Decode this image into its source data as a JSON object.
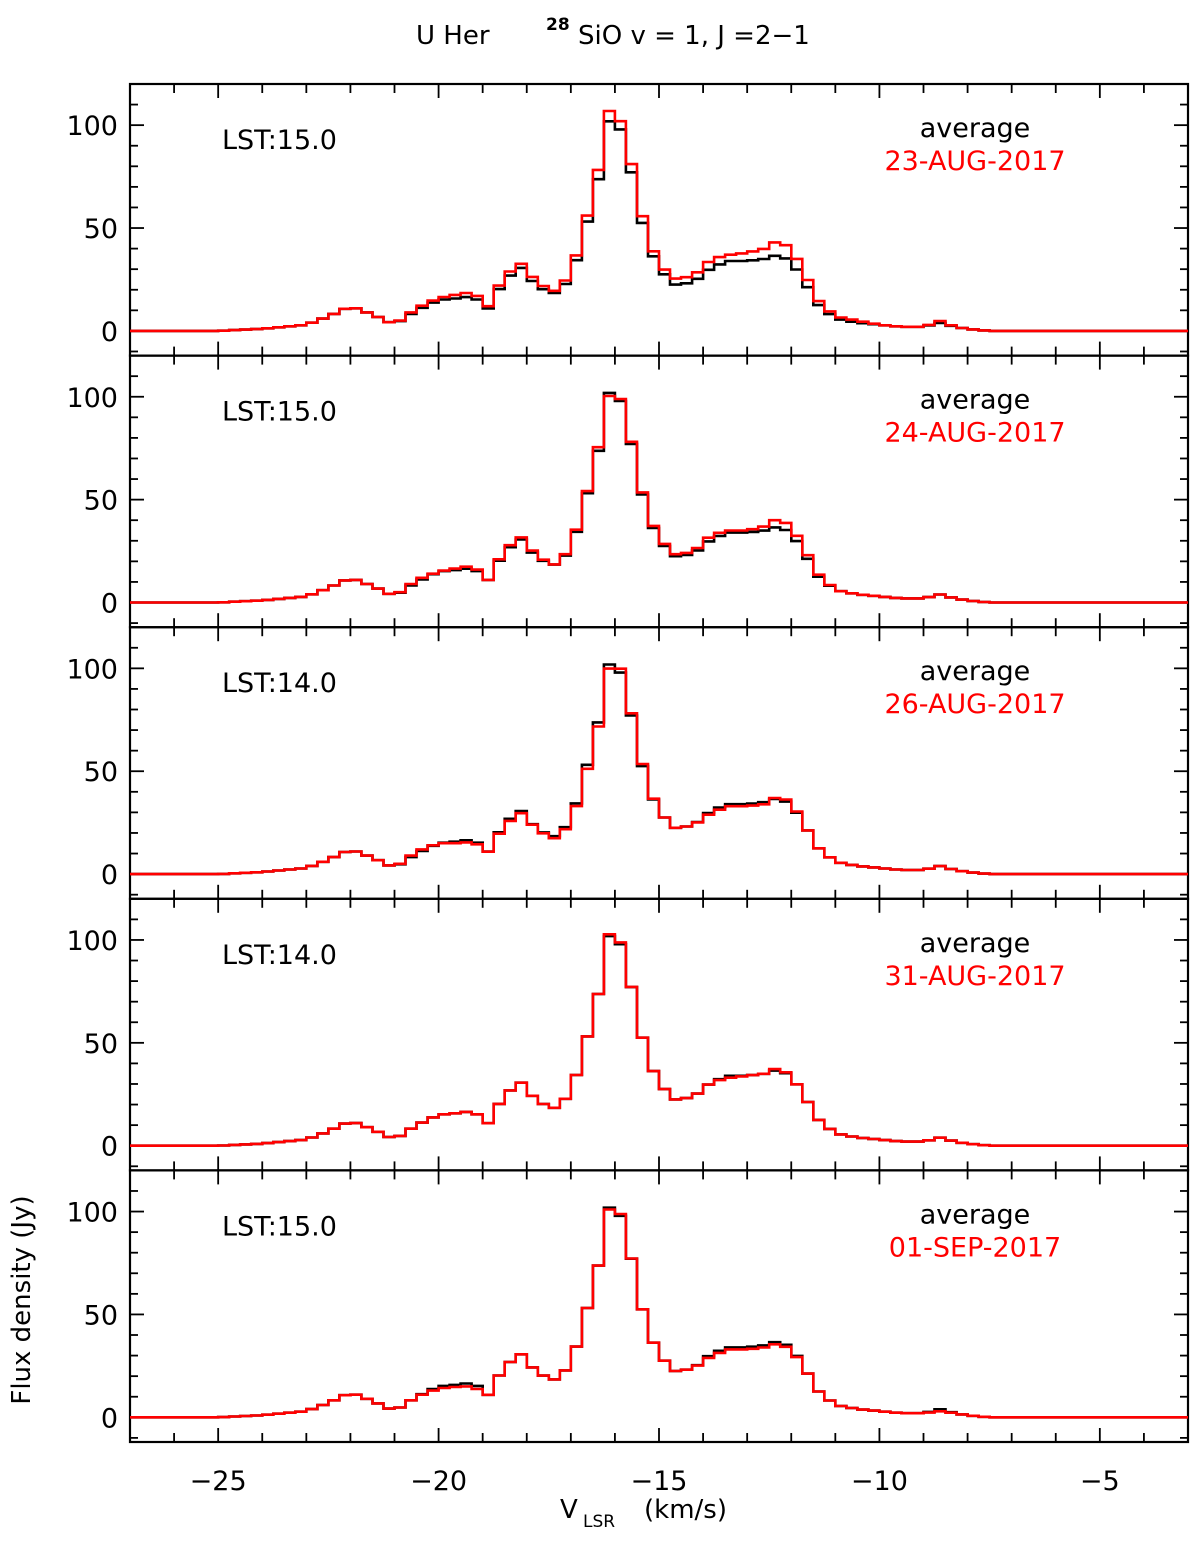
{
  "title": {
    "prefix": "U Her",
    "isotope": "28",
    "molecule": "SiO v = 1, J =2−1"
  },
  "xaxis": {
    "label_main": "V",
    "label_sub": "LSR",
    "label_unit": "(km/s)",
    "range": [
      -27,
      -3
    ],
    "tick_labels": [
      "−25",
      "−20",
      "−15",
      "−10",
      "−5"
    ]
  },
  "yaxis": {
    "label": "Flux density (Jy)",
    "range": [
      -12,
      120
    ],
    "tick_labels": [
      "0",
      "50",
      "100"
    ]
  },
  "colors": {
    "average": "#000000",
    "daily": "#ff0000"
  },
  "chart_data": [
    {
      "type": "line",
      "lst": "LST:15.0",
      "avg_label": "average",
      "date": "23-AUG-2017",
      "x": [
        -27,
        -25,
        -24,
        -23,
        -22.5,
        -22,
        -21.5,
        -21,
        -20.5,
        -20,
        -19.5,
        -19.2,
        -18.9,
        -18.5,
        -18.1,
        -17.8,
        -17.4,
        -17,
        -16.6,
        -16.3,
        -16.1,
        -15.9,
        -15.6,
        -15.3,
        -15,
        -14.6,
        -14.2,
        -13.8,
        -13.4,
        -13,
        -12.6,
        -12.3,
        -12,
        -11.7,
        -11.4,
        -11,
        -10.5,
        -10,
        -9.5,
        -9,
        -8.6,
        -8.3,
        -8,
        -7.5,
        -7,
        -5,
        -3
      ],
      "series": [
        {
          "name": "average",
          "values": [
            0,
            0,
            1,
            3,
            7,
            12,
            8,
            3,
            10,
            15,
            16,
            17,
            10,
            25,
            31,
            22,
            18,
            25,
            55,
            80,
            105,
            100,
            75,
            45,
            30,
            22,
            24,
            31,
            34,
            34,
            35,
            37,
            34,
            24,
            13,
            6,
            4,
            3,
            2,
            2,
            4,
            2,
            1,
            0,
            0,
            0,
            0
          ]
        },
        {
          "name": "daily",
          "values": [
            0,
            0,
            1,
            3,
            7,
            12,
            8,
            3,
            11,
            16,
            18,
            19,
            11,
            27,
            33,
            24,
            19,
            27,
            58,
            85,
            110,
            104,
            79,
            48,
            32,
            25,
            27,
            35,
            37,
            38,
            40,
            44,
            40,
            28,
            15,
            7,
            5,
            3,
            2,
            2,
            5,
            2,
            1,
            0,
            0,
            0,
            0
          ]
        }
      ]
    },
    {
      "type": "line",
      "lst": "LST:15.0",
      "avg_label": "average",
      "date": "24-AUG-2017",
      "x": [
        -27,
        -25,
        -24,
        -23,
        -22.5,
        -22,
        -21.5,
        -21,
        -20.5,
        -20,
        -19.5,
        -19.2,
        -18.9,
        -18.5,
        -18.1,
        -17.8,
        -17.4,
        -17,
        -16.6,
        -16.3,
        -16.1,
        -15.9,
        -15.6,
        -15.3,
        -15,
        -14.6,
        -14.2,
        -13.8,
        -13.4,
        -13,
        -12.6,
        -12.3,
        -12,
        -11.7,
        -11.4,
        -11,
        -10.5,
        -10,
        -9.5,
        -9,
        -8.6,
        -8.3,
        -8,
        -7.5,
        -7,
        -5,
        -3
      ],
      "series": [
        {
          "name": "average",
          "values": [
            0,
            0,
            1,
            3,
            7,
            12,
            8,
            3,
            10,
            15,
            16,
            17,
            10,
            25,
            31,
            22,
            18,
            25,
            55,
            80,
            105,
            100,
            75,
            45,
            30,
            22,
            24,
            31,
            34,
            34,
            35,
            37,
            34,
            24,
            13,
            6,
            4,
            3,
            2,
            2,
            4,
            2,
            1,
            0,
            0,
            0,
            0
          ]
        },
        {
          "name": "daily",
          "values": [
            0,
            0,
            1,
            3,
            7,
            12,
            8,
            3,
            11,
            15,
            17,
            18,
            10,
            26,
            32,
            23,
            18,
            26,
            56,
            82,
            103,
            101,
            76,
            46,
            31,
            23,
            25,
            33,
            35,
            35,
            37,
            41,
            37,
            26,
            14,
            6,
            4,
            3,
            2,
            2,
            4,
            2,
            1,
            0,
            0,
            0,
            0
          ]
        }
      ]
    },
    {
      "type": "line",
      "lst": "LST:14.0",
      "avg_label": "average",
      "date": "26-AUG-2017",
      "x": [
        -27,
        -25,
        -24,
        -23,
        -22.5,
        -22,
        -21.5,
        -21,
        -20.5,
        -20,
        -19.5,
        -19.2,
        -18.9,
        -18.5,
        -18.1,
        -17.8,
        -17.4,
        -17,
        -16.6,
        -16.3,
        -16.1,
        -15.9,
        -15.6,
        -15.3,
        -15,
        -14.6,
        -14.2,
        -13.8,
        -13.4,
        -13,
        -12.6,
        -12.3,
        -12,
        -11.7,
        -11.4,
        -11,
        -10.5,
        -10,
        -9.5,
        -9,
        -8.6,
        -8.3,
        -8,
        -7.5,
        -7,
        -5,
        -3
      ],
      "series": [
        {
          "name": "average",
          "values": [
            0,
            0,
            1,
            3,
            7,
            12,
            8,
            3,
            10,
            15,
            16,
            17,
            10,
            25,
            31,
            22,
            18,
            25,
            55,
            80,
            105,
            100,
            75,
            45,
            30,
            22,
            24,
            31,
            34,
            34,
            35,
            37,
            34,
            24,
            13,
            6,
            4,
            3,
            2,
            2,
            4,
            2,
            1,
            0,
            0,
            0,
            0
          ]
        },
        {
          "name": "daily",
          "values": [
            0,
            0,
            1,
            3,
            7,
            12,
            8,
            3,
            11,
            15,
            15,
            16,
            10,
            24,
            30,
            22,
            17,
            24,
            53,
            78,
            103,
            102,
            76,
            46,
            30,
            22,
            24,
            30,
            33,
            33,
            34,
            38,
            35,
            24,
            13,
            6,
            4,
            3,
            2,
            2,
            4,
            2,
            1,
            0,
            0,
            0,
            0
          ]
        }
      ]
    },
    {
      "type": "line",
      "lst": "LST:14.0",
      "avg_label": "average",
      "date": "31-AUG-2017",
      "x": [
        -27,
        -25,
        -24,
        -23,
        -22.5,
        -22,
        -21.5,
        -21,
        -20.5,
        -20,
        -19.5,
        -19.2,
        -18.9,
        -18.5,
        -18.1,
        -17.8,
        -17.4,
        -17,
        -16.6,
        -16.3,
        -16.1,
        -15.9,
        -15.6,
        -15.3,
        -15,
        -14.6,
        -14.2,
        -13.8,
        -13.4,
        -13,
        -12.6,
        -12.3,
        -12,
        -11.7,
        -11.4,
        -11,
        -10.5,
        -10,
        -9.5,
        -9,
        -8.6,
        -8.3,
        -8,
        -7.5,
        -7,
        -5,
        -3
      ],
      "series": [
        {
          "name": "average",
          "values": [
            0,
            0,
            1,
            3,
            7,
            12,
            8,
            3,
            10,
            15,
            16,
            17,
            10,
            25,
            31,
            22,
            18,
            25,
            55,
            80,
            105,
            100,
            75,
            45,
            30,
            22,
            24,
            31,
            34,
            34,
            35,
            37,
            34,
            24,
            13,
            6,
            4,
            3,
            2,
            2,
            4,
            2,
            1,
            0,
            0,
            0,
            0
          ]
        },
        {
          "name": "daily",
          "values": [
            0,
            0,
            1,
            3,
            7,
            12,
            8,
            3,
            10,
            15,
            16,
            17,
            10,
            25,
            31,
            22,
            18,
            25,
            55,
            80,
            106,
            101,
            75,
            45,
            30,
            22,
            24,
            31,
            33,
            34,
            35,
            38,
            34,
            24,
            13,
            6,
            4,
            3,
            2,
            2,
            4,
            2,
            1,
            0,
            0,
            0,
            0
          ]
        }
      ]
    },
    {
      "type": "line",
      "lst": "LST:15.0",
      "avg_label": "average",
      "date": "01-SEP-2017",
      "x": [
        -27,
        -25,
        -24,
        -23,
        -22.5,
        -22,
        -21.5,
        -21,
        -20.5,
        -20,
        -19.5,
        -19.2,
        -18.9,
        -18.5,
        -18.1,
        -17.8,
        -17.4,
        -17,
        -16.6,
        -16.3,
        -16.1,
        -15.9,
        -15.6,
        -15.3,
        -15,
        -14.6,
        -14.2,
        -13.8,
        -13.4,
        -13,
        -12.6,
        -12.3,
        -12,
        -11.7,
        -11.4,
        -11,
        -10.5,
        -10,
        -9.5,
        -9,
        -8.6,
        -8.3,
        -8,
        -7.5,
        -7,
        -5,
        -3
      ],
      "series": [
        {
          "name": "average",
          "values": [
            0,
            0,
            1,
            3,
            7,
            12,
            8,
            3,
            10,
            15,
            16,
            17,
            10,
            25,
            31,
            22,
            18,
            25,
            55,
            80,
            105,
            100,
            75,
            45,
            30,
            22,
            24,
            31,
            34,
            34,
            35,
            37,
            34,
            24,
            13,
            6,
            4,
            3,
            2,
            2,
            4,
            2,
            1,
            0,
            0,
            0,
            0
          ]
        },
        {
          "name": "daily",
          "values": [
            0,
            0,
            1,
            3,
            7,
            12,
            8,
            3,
            10,
            14,
            15,
            15,
            10,
            25,
            31,
            22,
            18,
            25,
            55,
            80,
            104,
            101,
            75,
            45,
            30,
            22,
            24,
            30,
            33,
            33,
            34,
            36,
            33,
            24,
            13,
            6,
            4,
            3,
            2,
            2,
            3,
            2,
            1,
            0,
            0,
            0,
            0
          ]
        }
      ]
    }
  ]
}
